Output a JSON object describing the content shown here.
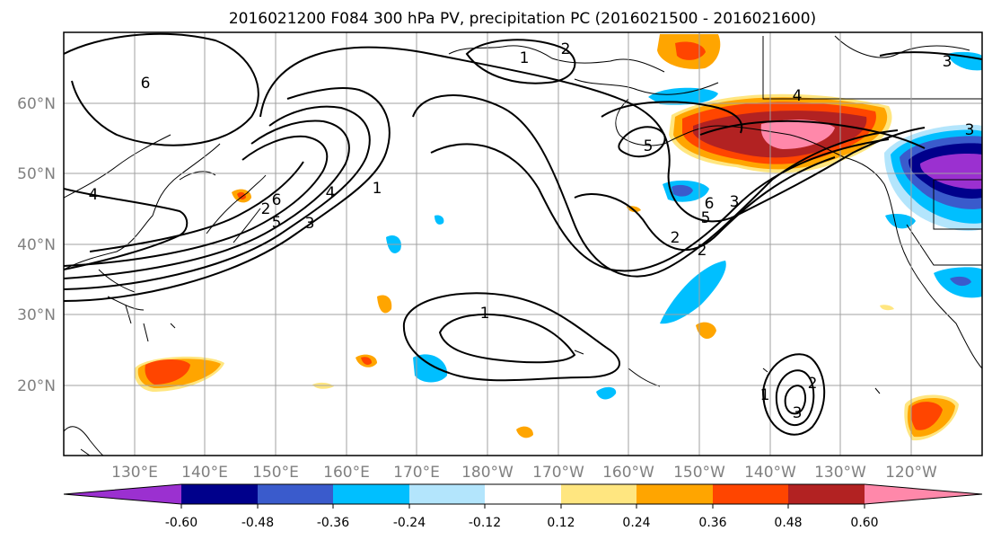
{
  "title": "2016021200 F084 300 hPa PV, precipitation PC (2016021500 - 2016021600)",
  "lat_labels": [
    "20°N",
    "30°N",
    "40°N",
    "50°N",
    "60°N"
  ],
  "lon_labels": [
    "130°E",
    "140°E",
    "150°E",
    "160°E",
    "170°E",
    "180°W",
    "170°W",
    "160°W",
    "150°W",
    "140°W",
    "130°W",
    "120°W"
  ],
  "contour_labels": [
    "6",
    "4",
    "2",
    "3",
    "1",
    "5",
    "2",
    "3",
    "4",
    "6",
    "5",
    "3",
    "2",
    "1",
    "3",
    "2",
    "6",
    "5",
    "4",
    "3",
    "1",
    "2",
    "1"
  ],
  "colorbar": {
    "tick_labels": [
      "-0.60",
      "-0.48",
      "-0.36",
      "-0.24",
      "-0.12",
      "0.12",
      "0.24",
      "0.36",
      "0.48",
      "0.60"
    ],
    "colors": [
      "#9b30d0",
      "#00008b",
      "#3a5bcc",
      "#00bfff",
      "#b3e5fc",
      "#ffffff",
      "#ffe680",
      "#ffa500",
      "#ff4500",
      "#b22222",
      "#ff88aa"
    ]
  },
  "colors": {
    "contour": "#000000",
    "grid": "#a0a0a0",
    "coast": "#000000",
    "tick_text": "#808080"
  }
}
